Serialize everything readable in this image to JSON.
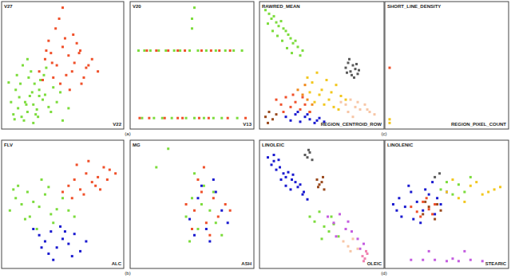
{
  "chart_data": [
    {
      "type": "scatter",
      "x_label": "V22",
      "y_label": "V27",
      "xlim": [
        0,
        100
      ],
      "ylim": [
        0,
        100
      ],
      "tick_labels": false,
      "marker": "square",
      "annotations": [
        "(a)"
      ],
      "series": [
        {
          "color": "#7cdc3c",
          "x": [
            8,
            12,
            15,
            18,
            20,
            22,
            25,
            28,
            30,
            33,
            10,
            14,
            17,
            21,
            24,
            27,
            31,
            35,
            38,
            42,
            6,
            9,
            13,
            19,
            23,
            26,
            29,
            34,
            40,
            45,
            16,
            20,
            25,
            30,
            36,
            48,
            11,
            55,
            4,
            50
          ],
          "values": [
            10,
            15,
            8,
            20,
            12,
            25,
            18,
            14,
            30,
            22,
            30,
            35,
            5,
            40,
            28,
            10,
            38,
            26,
            16,
            32,
            20,
            6,
            24,
            18,
            45,
            35,
            8,
            42,
            12,
            20,
            50,
            55,
            3,
            25,
            48,
            28,
            42,
            15,
            36,
            5
          ]
        },
        {
          "color": "#f0502a",
          "x": [
            30,
            35,
            40,
            45,
            50,
            55,
            60,
            65,
            70,
            38,
            42,
            48,
            52,
            58,
            62,
            68,
            75,
            33,
            44,
            56,
            64,
            72,
            47,
            53,
            80,
            36,
            59,
            66,
            41,
            50
          ],
          "values": [
            45,
            55,
            60,
            50,
            65,
            58,
            52,
            62,
            48,
            70,
            40,
            35,
            72,
            45,
            68,
            40,
            55,
            38,
            80,
            30,
            60,
            50,
            88,
            42,
            45,
            62,
            75,
            35,
            52,
            97
          ]
        }
      ]
    },
    {
      "type": "scatter",
      "x_label": "V13",
      "y_label": "V20",
      "xlim": [
        0,
        100
      ],
      "ylim": [
        0,
        100
      ],
      "tick_labels": false,
      "marker": "square",
      "series": [
        {
          "color": "#7cdc3c",
          "x": [
            5,
            10,
            15,
            22,
            28,
            35,
            40,
            48,
            55,
            62,
            70,
            78,
            85,
            92,
            8,
            18,
            25,
            33,
            45,
            52,
            60,
            68,
            75,
            88,
            50,
            50,
            52
          ],
          "values": [
            62,
            62,
            62,
            62,
            62,
            62,
            62,
            62,
            62,
            62,
            62,
            62,
            62,
            62,
            7,
            7,
            7,
            7,
            7,
            7,
            7,
            7,
            7,
            7,
            80,
            88,
            97
          ]
        },
        {
          "color": "#f0502a",
          "x": [
            12,
            20,
            30,
            38,
            44,
            58,
            66,
            73,
            82,
            6,
            14,
            27,
            38,
            42,
            56,
            64,
            80,
            95
          ],
          "values": [
            62,
            62,
            62,
            62,
            62,
            62,
            62,
            62,
            62,
            7,
            7,
            7,
            7,
            7,
            7,
            7,
            7,
            7
          ]
        }
      ]
    },
    {
      "type": "scatter",
      "x_label": "REGION_CENTROID_ROW",
      "y_label": "RAWRED_MEAN",
      "xlim": [
        0,
        100
      ],
      "ylim": [
        0,
        100
      ],
      "tick_labels": false,
      "marker": "square",
      "annotations": [
        "(c)"
      ],
      "series": [
        {
          "color": "#7cdc3c",
          "x": [
            3,
            6,
            8,
            10,
            12,
            14,
            16,
            18,
            20,
            22,
            24,
            26,
            28,
            30,
            5,
            9,
            13,
            17,
            21,
            25,
            32,
            34
          ],
          "values": [
            95,
            92,
            88,
            90,
            85,
            82,
            86,
            80,
            78,
            75,
            72,
            68,
            70,
            65,
            84,
            78,
            74,
            70,
            64,
            60,
            58,
            62
          ]
        },
        {
          "color": "#5a5a5a",
          "x": [
            70,
            72,
            74,
            76,
            78,
            80,
            73,
            77,
            75,
            79,
            71,
            81
          ],
          "values": [
            48,
            52,
            45,
            50,
            47,
            43,
            55,
            40,
            42,
            51,
            44,
            46
          ]
        },
        {
          "color": "#f2c71e",
          "x": [
            38,
            42,
            46,
            50,
            54,
            58,
            62,
            66,
            70,
            44,
            48,
            52,
            56,
            60,
            40,
            64
          ],
          "values": [
            40,
            36,
            44,
            30,
            38,
            28,
            34,
            25,
            22,
            20,
            26,
            18,
            22,
            16,
            28,
            14
          ]
        },
        {
          "color": "#f08a1c",
          "x": [
            30,
            34,
            38,
            42,
            36,
            40
          ],
          "values": [
            30,
            26,
            22,
            18,
            34,
            12
          ]
        },
        {
          "color": "#f7c6a6",
          "x": [
            66,
            70,
            74,
            78,
            82,
            86,
            90,
            94,
            72,
            80,
            88,
            76
          ],
          "values": [
            20,
            18,
            22,
            16,
            14,
            18,
            12,
            10,
            12,
            20,
            14,
            8
          ]
        },
        {
          "color": "#f0502a",
          "x": [
            12,
            16,
            20,
            24,
            28,
            32,
            36,
            18,
            26,
            34,
            40
          ],
          "values": [
            22,
            18,
            24,
            16,
            20,
            14,
            18,
            12,
            26,
            24,
            12
          ]
        },
        {
          "color": "#1a1ad0",
          "x": [
            20,
            24,
            28,
            32,
            36,
            40,
            44,
            48,
            30,
            38,
            46,
            52
          ],
          "values": [
            8,
            5,
            10,
            4,
            8,
            6,
            3,
            7,
            12,
            10,
            5,
            4
          ]
        },
        {
          "color": "#9a4a1e",
          "x": [
            3,
            6,
            9,
            12,
            5
          ],
          "values": [
            8,
            12,
            6,
            10,
            3
          ]
        }
      ]
    },
    {
      "type": "scatter",
      "x_label": "REGION_PIXEL_COUNT",
      "y_label": "SHORT_LINE_DENSITY",
      "xlim": [
        0,
        100
      ],
      "ylim": [
        0,
        100
      ],
      "tick_labels": false,
      "marker": "square",
      "series": [
        {
          "color": "#f0502a",
          "x": [
            2
          ],
          "values": [
            48
          ]
        },
        {
          "color": "#f2c71e",
          "x": [
            2,
            2
          ],
          "values": [
            6,
            3
          ]
        }
      ]
    },
    {
      "type": "scatter",
      "x_label": "ALC",
      "y_label": "FLV",
      "xlim": [
        0,
        100
      ],
      "ylim": [
        0,
        100
      ],
      "tick_labels": false,
      "marker": "square",
      "annotations": [
        "(b)"
      ],
      "series": [
        {
          "color": "#7cdc3c",
          "x": [
            5,
            10,
            15,
            20,
            25,
            30,
            35,
            40,
            45,
            12,
            22,
            32,
            42,
            50,
            55,
            18,
            28,
            8,
            38,
            60
          ],
          "values": [
            45,
            55,
            50,
            60,
            52,
            48,
            58,
            42,
            46,
            65,
            40,
            70,
            35,
            55,
            45,
            38,
            30,
            62,
            64,
            40
          ]
        },
        {
          "color": "#f0502a",
          "x": [
            50,
            55,
            60,
            65,
            70,
            75,
            80,
            85,
            90,
            58,
            68,
            78,
            88,
            62,
            72,
            82,
            95
          ],
          "values": [
            60,
            65,
            70,
            62,
            75,
            68,
            72,
            80,
            78,
            55,
            58,
            65,
            70,
            82,
            85,
            62,
            75
          ]
        },
        {
          "color": "#1a1ad0",
          "x": [
            25,
            30,
            35,
            40,
            45,
            50,
            55,
            60,
            65,
            70,
            38,
            48,
            58,
            32,
            52,
            42
          ],
          "values": [
            30,
            25,
            20,
            28,
            15,
            22,
            18,
            26,
            12,
            20,
            10,
            32,
            8,
            15,
            28,
            5
          ]
        }
      ]
    },
    {
      "type": "scatter",
      "x_label": "ASH",
      "y_label": "MG",
      "xlim": [
        0,
        100
      ],
      "ylim": [
        0,
        100
      ],
      "tick_labels": false,
      "marker": "square",
      "series": [
        {
          "color": "#7cdc3c",
          "x": [
            30,
            20,
            45,
            50,
            55,
            60,
            65,
            70,
            48,
            58,
            68,
            52,
            75
          ],
          "values": [
            95,
            80,
            40,
            55,
            30,
            65,
            45,
            35,
            20,
            50,
            60,
            75,
            25
          ]
        },
        {
          "color": "#f0502a",
          "x": [
            45,
            52,
            58,
            62,
            68,
            72,
            78,
            55,
            65,
            82,
            60,
            50
          ],
          "values": [
            50,
            45,
            60,
            35,
            55,
            40,
            50,
            70,
            25,
            45,
            80,
            30
          ]
        },
        {
          "color": "#1a1ad0",
          "x": [
            48,
            55,
            62,
            70,
            75,
            58,
            65,
            52,
            80,
            68
          ],
          "values": [
            38,
            55,
            30,
            60,
            45,
            65,
            20,
            25,
            35,
            70
          ]
        }
      ]
    },
    {
      "type": "scatter",
      "x_label": "OLEIC",
      "y_label": "LINOLEIC",
      "xlim": [
        0,
        100
      ],
      "ylim": [
        0,
        100
      ],
      "tick_labels": false,
      "marker": "square",
      "annotations": [
        "(d)"
      ],
      "series": [
        {
          "color": "#1a1ad0",
          "x": [
            5,
            8,
            10,
            12,
            15,
            18,
            20,
            22,
            25,
            28,
            30,
            32,
            35,
            14,
            24,
            34,
            38,
            16,
            26,
            20,
            10
          ],
          "values": [
            88,
            82,
            85,
            78,
            80,
            75,
            72,
            76,
            70,
            68,
            64,
            66,
            60,
            86,
            62,
            58,
            54,
            70,
            74,
            65,
            90
          ]
        },
        {
          "color": "#5a5a5a",
          "x": [
            36,
            38,
            40,
            42,
            39
          ],
          "values": [
            90,
            88,
            92,
            86,
            94
          ]
        },
        {
          "color": "#9a4a1e",
          "x": [
            46,
            48,
            50,
            52,
            47,
            51
          ],
          "values": [
            70,
            66,
            68,
            62,
            64,
            72
          ]
        },
        {
          "color": "#7cdc3c",
          "x": [
            40,
            44,
            48,
            52,
            56,
            60,
            64,
            50,
            58
          ],
          "values": [
            40,
            36,
            44,
            32,
            28,
            34,
            24,
            22,
            40
          ]
        },
        {
          "color": "#c45ce0",
          "x": [
            55,
            60,
            65,
            70,
            75,
            80,
            85,
            62,
            72,
            82
          ],
          "values": [
            40,
            35,
            42,
            30,
            28,
            22,
            18,
            24,
            36,
            14
          ]
        },
        {
          "color": "#f7c6a6",
          "x": [
            68,
            72,
            76,
            80,
            74
          ],
          "values": [
            20,
            16,
            22,
            14,
            12
          ]
        },
        {
          "color": "#f080b0",
          "x": [
            84,
            86,
            88,
            85,
            87
          ],
          "values": [
            8,
            6,
            10,
            4,
            12
          ]
        }
      ]
    },
    {
      "type": "scatter",
      "x_label": "STEARIC",
      "y_label": "LINOLENIC",
      "xlim": [
        0,
        100
      ],
      "ylim": [
        0,
        100
      ],
      "tick_labels": false,
      "marker": "square",
      "series": [
        {
          "color": "#1a1ad0",
          "x": [
            5,
            10,
            15,
            20,
            25,
            30,
            35,
            40,
            45,
            12,
            22,
            32,
            42,
            18,
            28,
            8,
            38,
            50
          ],
          "values": [
            50,
            55,
            48,
            60,
            52,
            45,
            58,
            42,
            50,
            40,
            38,
            62,
            55,
            65,
            35,
            45,
            68,
            60
          ]
        },
        {
          "color": "#f0502a",
          "x": [
            20,
            25,
            30,
            35,
            40,
            28,
            38,
            33
          ],
          "values": [
            48,
            44,
            52,
            46,
            50,
            40,
            42,
            55
          ]
        },
        {
          "color": "#9a4a1e",
          "x": [
            30,
            35,
            40,
            45,
            32,
            42
          ],
          "values": [
            42,
            48,
            38,
            45,
            52,
            50
          ]
        },
        {
          "color": "#f2c71e",
          "x": [
            50,
            60,
            70,
            80,
            90,
            55,
            65,
            75,
            85,
            95
          ],
          "values": [
            60,
            55,
            65,
            58,
            62,
            70,
            52,
            68,
            60,
            64
          ]
        },
        {
          "color": "#7cdc3c",
          "x": [
            45,
            55,
            60,
            50,
            65,
            70
          ],
          "values": [
            62,
            58,
            66,
            68,
            60,
            72
          ]
        },
        {
          "color": "#5a5a5a",
          "x": [
            40,
            44
          ],
          "values": [
            72,
            75
          ]
        },
        {
          "color": "#c45ce0",
          "x": [
            20,
            30,
            40,
            50,
            60,
            70,
            80,
            35,
            55,
            65
          ],
          "values": [
            5,
            5,
            5,
            4,
            4,
            5,
            4,
            12,
            6,
            12
          ]
        }
      ]
    }
  ]
}
